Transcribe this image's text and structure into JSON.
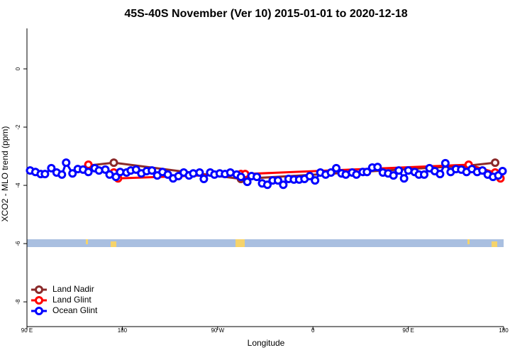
{
  "chart_data": {
    "type": "line",
    "title": "45S-40S November (Ver 10)   2015-01-01 to 2020-12-18",
    "x_label": "Longitude",
    "y_label": "XCO2 - MLO trend (ppm)",
    "xlim": [
      90,
      540
    ],
    "ylim": [
      -8.85,
      1.39
    ],
    "xticks": [
      {
        "value": 90,
        "label": "90 E"
      },
      180,
      {
        "value": 270,
        "label": "90 W"
      },
      {
        "value": 360,
        "label": "0"
      },
      {
        "value": 450,
        "label": "90 E"
      },
      {
        "value": 540,
        "label": "180"
      }
    ],
    "yticks": [
      0,
      -2,
      -4,
      -6,
      -8
    ],
    "legend": "bottom-left",
    "series": [
      {
        "name": "Land Nadir",
        "color": "#8b2a2a",
        "x": [
          148,
          172,
          292,
          507,
          532
        ],
        "values": [
          -3.32,
          -3.22,
          -3.78,
          -3.32,
          -3.22
        ]
      },
      {
        "name": "Land Glint",
        "color": "#ff0000",
        "x": [
          148,
          172,
          176,
          292,
          296,
          507,
          532,
          537
        ],
        "values": [
          -3.29,
          -3.56,
          -3.76,
          -3.61,
          -3.61,
          -3.29,
          -3.56,
          -3.76
        ]
      },
      {
        "name": "Ocean Glint",
        "color": "#0000ff",
        "x": [
          93,
          98,
          103,
          107,
          113,
          118,
          123,
          127,
          133,
          138,
          143,
          148,
          154,
          158,
          164,
          168,
          174,
          178,
          184,
          188,
          193,
          198,
          203,
          208,
          213,
          218,
          223,
          228,
          233,
          238,
          243,
          247,
          253,
          257,
          263,
          267,
          272,
          277,
          282,
          288,
          292,
          298,
          302,
          307,
          312,
          317,
          322,
          327,
          332,
          337,
          342,
          347,
          352,
          357,
          362,
          367,
          372,
          377,
          382,
          387,
          391,
          397,
          401,
          407,
          411,
          416,
          421,
          426,
          431,
          436,
          441,
          446,
          450,
          456,
          460,
          465,
          470,
          475,
          480,
          485,
          490,
          495,
          500,
          505,
          510,
          515,
          520,
          525,
          530,
          535,
          539
        ],
        "values": [
          -3.49,
          -3.54,
          -3.61,
          -3.61,
          -3.41,
          -3.56,
          -3.63,
          -3.22,
          -3.59,
          -3.44,
          -3.46,
          -3.54,
          -3.41,
          -3.49,
          -3.46,
          -3.63,
          -3.71,
          -3.54,
          -3.56,
          -3.49,
          -3.46,
          -3.59,
          -3.51,
          -3.49,
          -3.66,
          -3.54,
          -3.63,
          -3.76,
          -3.68,
          -3.56,
          -3.66,
          -3.59,
          -3.56,
          -3.78,
          -3.56,
          -3.63,
          -3.59,
          -3.61,
          -3.56,
          -3.63,
          -3.71,
          -3.88,
          -3.68,
          -3.71,
          -3.93,
          -3.98,
          -3.83,
          -3.83,
          -3.98,
          -3.78,
          -3.8,
          -3.8,
          -3.78,
          -3.68,
          -3.83,
          -3.56,
          -3.63,
          -3.56,
          -3.41,
          -3.59,
          -3.63,
          -3.56,
          -3.63,
          -3.54,
          -3.54,
          -3.39,
          -3.37,
          -3.56,
          -3.59,
          -3.66,
          -3.49,
          -3.76,
          -3.49,
          -3.54,
          -3.63,
          -3.63,
          -3.41,
          -3.51,
          -3.61,
          -3.24,
          -3.54,
          -3.44,
          -3.46,
          -3.54,
          -3.44,
          -3.54,
          -3.49,
          -3.63,
          -3.71,
          -3.66,
          -3.51
        ]
      }
    ]
  }
}
